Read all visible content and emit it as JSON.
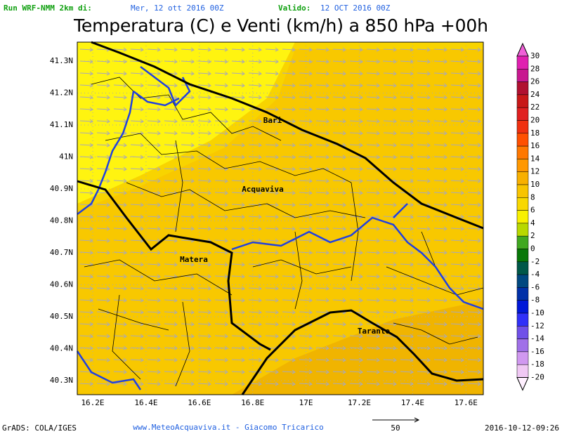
{
  "header": {
    "run_label": "Run WRF-NMM 2km di:",
    "run_date": "Mer, 12 ott 2016 00Z",
    "valid_label": "Valido:",
    "valid_date": "12 OCT 2016 00Z",
    "title": "Temperatura (C) e Venti (km/h) a 850 hPa +00h"
  },
  "map": {
    "lat_labels": [
      "41.3N",
      "41.2N",
      "41.1N",
      "41N",
      "40.9N",
      "40.8N",
      "40.7N",
      "40.6N",
      "40.5N",
      "40.4N",
      "40.3N"
    ],
    "lon_labels": [
      "16.2E",
      "16.4E",
      "16.6E",
      "16.8E",
      "17E",
      "17.2E",
      "17.4E",
      "17.6E"
    ],
    "places": [
      {
        "label": "Bari"
      },
      {
        "label": "Acquaviva"
      },
      {
        "label": "Matera"
      },
      {
        "label": "Taranto"
      }
    ]
  },
  "colorbar": {
    "over_color": "#f060d8",
    "levels": [
      {
        "label": "30",
        "color": "#e020b0"
      },
      {
        "label": "28",
        "color": "#c81890"
      },
      {
        "label": "26",
        "color": "#b01030"
      },
      {
        "label": "24",
        "color": "#c81818"
      },
      {
        "label": "22",
        "color": "#e02020"
      },
      {
        "label": "20",
        "color": "#f03010"
      },
      {
        "label": "18",
        "color": "#ff5000"
      },
      {
        "label": "16",
        "color": "#ff7800"
      },
      {
        "label": "14",
        "color": "#ff9800"
      },
      {
        "label": "12",
        "color": "#f8b000"
      },
      {
        "label": "10",
        "color": "#f8c400"
      },
      {
        "label": "8",
        "color": "#f8d800"
      },
      {
        "label": "6",
        "color": "#f8f000"
      },
      {
        "label": "4",
        "color": "#b8d800"
      },
      {
        "label": "2",
        "color": "#40a820"
      },
      {
        "label": "0",
        "color": "#087808"
      },
      {
        "label": "-2",
        "color": "#005848"
      },
      {
        "label": "-4",
        "color": "#004880"
      },
      {
        "label": "-6",
        "color": "#0030a8"
      },
      {
        "label": "-8",
        "color": "#0018d8"
      },
      {
        "label": "-10",
        "color": "#3030f8"
      },
      {
        "label": "-12",
        "color": "#7050e8"
      },
      {
        "label": "-14",
        "color": "#a070e8"
      },
      {
        "label": "-16",
        "color": "#d098f0"
      },
      {
        "label": "-18",
        "color": "#f0c8f4"
      },
      {
        "label": "-20",
        "color": "#fff0ff"
      }
    ]
  },
  "footer": {
    "credit": "GrADS: COLA/IGES",
    "url_credit": "www.MeteoAcquaviva.it - Giacomo Tricarico",
    "scale": "50",
    "timestamp": "2016-10-12-09:26"
  }
}
